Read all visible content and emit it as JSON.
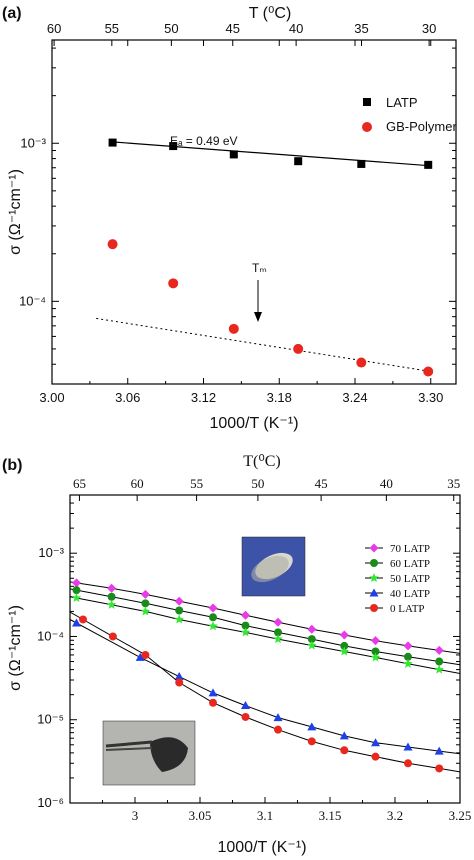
{
  "chart_data": [
    {
      "panel": "(a)",
      "type": "scatter",
      "title": "",
      "xlabel": "1000/T (K⁻¹)",
      "ylabel": "σ (Ω⁻¹cm⁻¹)",
      "top_xlabel": "T (⁰C)",
      "xlim": [
        3.0,
        3.32
      ],
      "ylim": [
        3e-05,
        0.0045
      ],
      "yscale": "log",
      "xticks": [
        "3.00",
        "3.06",
        "3.12",
        "3.18",
        "3.24",
        "3.30"
      ],
      "yticks": [
        "10⁻⁴",
        "10⁻³"
      ],
      "top_ticks": [
        "60",
        "55",
        "50",
        "45",
        "40",
        "35",
        "30"
      ],
      "legend": [
        "LATP",
        "GB-Polymer"
      ],
      "legend_position": "top-right",
      "series": [
        {
          "name": "LATP",
          "color": "#000000",
          "marker": "square",
          "points": [
            [
              3.048,
              0.00101
            ],
            [
              3.096,
              0.00096
            ],
            [
              3.144,
              0.00085
            ],
            [
              3.195,
              0.00077
            ],
            [
              3.245,
              0.00074
            ],
            [
              3.298,
              0.00073
            ]
          ],
          "fit": [
            [
              3.048,
              0.00102
            ],
            [
              3.3,
              0.00072
            ]
          ]
        },
        {
          "name": "GB-Polymer",
          "color": "#e8281e",
          "marker": "circle",
          "points": [
            [
              3.048,
              0.00023
            ],
            [
              3.096,
              0.00013
            ],
            [
              3.144,
              6.7e-05
            ],
            [
              3.195,
              5e-05
            ],
            [
              3.245,
              4.1e-05
            ],
            [
              3.298,
              3.6e-05
            ]
          ],
          "fit_dotted": [
            [
              3.035,
              7.8e-05
            ],
            [
              3.3,
              3.6e-05
            ]
          ]
        }
      ],
      "annotations": [
        {
          "text": "Eₐ = 0.49 eV"
        },
        {
          "text": "Tₘ"
        }
      ]
    },
    {
      "panel": "(b)",
      "type": "line",
      "title": "",
      "xlabel": "1000/T (K⁻¹)",
      "ylabel": "σ (Ω⁻¹cm⁻¹)",
      "top_xlabel": "T(⁰C)",
      "xlim": [
        2.95,
        3.25
      ],
      "ylim": [
        1e-06,
        0.005
      ],
      "yscale": "log",
      "xticks": [
        "3",
        "3.05",
        "3.1",
        "3.15",
        "3.2",
        "3.25"
      ],
      "yticks": [
        "10⁻⁶",
        "10⁻⁵",
        "10⁻⁴",
        "10⁻³"
      ],
      "top_ticks": [
        "65",
        "60",
        "55",
        "50",
        "45",
        "40",
        "35"
      ],
      "legend": [
        "70 LATP",
        "60 LATP",
        "50 LATP",
        "40 LATP",
        "0 LATP"
      ],
      "legend_position": "top-right",
      "series": [
        {
          "name": "70 LATP",
          "color": "#e83be8",
          "marker": "diamond",
          "x": [
            2.955,
            2.982,
            3.008,
            3.034,
            3.06,
            3.085,
            3.11,
            3.136,
            3.161,
            3.185,
            3.21,
            3.234
          ],
          "y": [
            0.00044,
            0.00038,
            0.00032,
            0.000265,
            0.00022,
            0.00018,
            0.000148,
            0.000122,
            0.000104,
            8.9e-05,
            7.7e-05,
            6.8e-05
          ]
        },
        {
          "name": "60 LATP",
          "color": "#1a8a1a",
          "marker": "circle",
          "x": [
            2.955,
            2.982,
            3.008,
            3.034,
            3.06,
            3.085,
            3.11,
            3.136,
            3.161,
            3.185,
            3.21,
            3.234
          ],
          "y": [
            0.00036,
            0.0003,
            0.00025,
            0.000205,
            0.00017,
            0.000135,
            0.000112,
            9.3e-05,
            7.7e-05,
            6.6e-05,
            5.7e-05,
            5e-05
          ]
        },
        {
          "name": "50 LATP",
          "color": "#33e833",
          "marker": "star",
          "x": [
            2.955,
            2.982,
            3.008,
            3.034,
            3.06,
            3.085,
            3.11,
            3.136,
            3.161,
            3.185,
            3.21,
            3.234
          ],
          "y": [
            0.00029,
            0.00024,
            0.0002,
            0.00016,
            0.000133,
            0.000112,
            9.3e-05,
            7.8e-05,
            6.6e-05,
            5.6e-05,
            4.7e-05,
            4e-05
          ]
        },
        {
          "name": "40 LATP",
          "color": "#1f3fe8",
          "marker": "triangle",
          "x": [
            2.955,
            3.004,
            3.034,
            3.06,
            3.085,
            3.11,
            3.136,
            3.161,
            3.185,
            3.21,
            3.234
          ],
          "y": [
            0.000145,
            5.6e-05,
            3.3e-05,
            2.1e-05,
            1.48e-05,
            1.06e-05,
            8.2e-06,
            6.4e-06,
            5.3e-06,
            4.7e-06,
            4.2e-06
          ]
        },
        {
          "name": "0 LATP",
          "color": "#e8281e",
          "marker": "circle",
          "x": [
            2.96,
            2.983,
            3.008,
            3.034,
            3.06,
            3.085,
            3.11,
            3.136,
            3.161,
            3.185,
            3.21,
            3.234
          ],
          "y": [
            0.00016,
            0.0001,
            6e-05,
            2.8e-05,
            1.6e-05,
            1.08e-05,
            7.6e-06,
            5.5e-06,
            4.3e-06,
            3.6e-06,
            3e-06,
            2.6e-06
          ]
        }
      ]
    }
  ]
}
